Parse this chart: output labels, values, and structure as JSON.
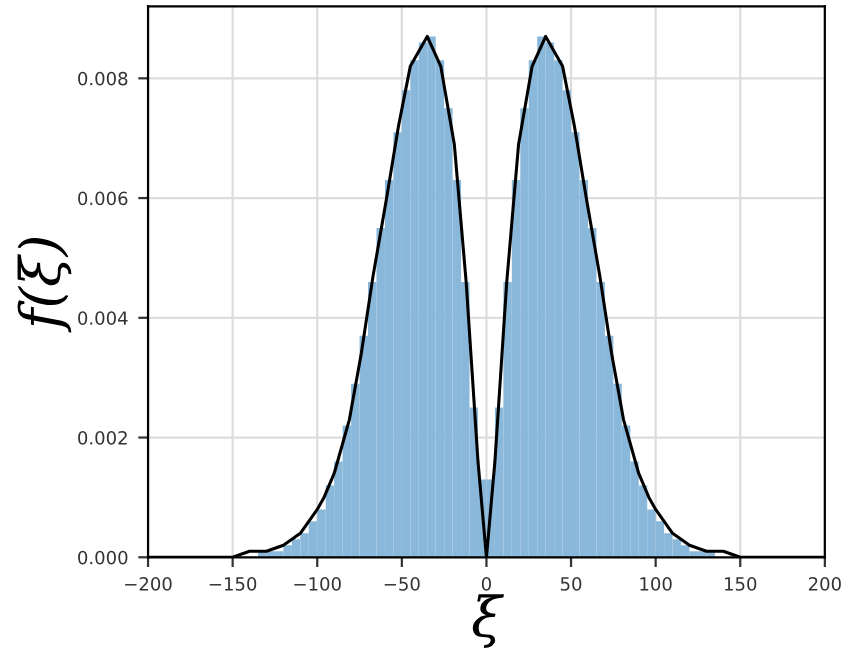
{
  "chart_data": {
    "type": "histogram",
    "xlabel": "ξ",
    "ylabel": "f(ξ)",
    "xlim": [
      -200,
      200
    ],
    "ylim": [
      0,
      0.0092
    ],
    "xticks": [
      {
        "value": -200,
        "label": "−200"
      },
      {
        "value": -150,
        "label": "−150"
      },
      {
        "value": -100,
        "label": "−100"
      },
      {
        "value": -50,
        "label": "−50"
      },
      0,
      50,
      100,
      150,
      200
    ],
    "yticks": [
      {
        "value": 0,
        "label": "0.000"
      },
      {
        "value": 0.002,
        "label": "0.002"
      },
      {
        "value": 0.004,
        "label": "0.004"
      },
      {
        "value": 0.006,
        "label": "0.006"
      },
      {
        "value": 0.008,
        "label": "0.008"
      }
    ],
    "grid": true,
    "series": [
      {
        "color": "#8ab8da",
        "bins": [
          -140,
          -135,
          -130,
          -125,
          -120,
          -115,
          -110,
          -105,
          -100,
          -95,
          -90,
          -85,
          -80,
          -75,
          -70,
          -65,
          -60,
          -55,
          -50,
          -45,
          -40,
          -35,
          -30,
          -25,
          -20,
          -15,
          -10,
          -5,
          0,
          5,
          10,
          15,
          20,
          25,
          30,
          35,
          40,
          45,
          50,
          55,
          60,
          65,
          70,
          75,
          80,
          85,
          90,
          95,
          100,
          105,
          110,
          115,
          120,
          125,
          130,
          135,
          140
        ],
        "values": [
          0,
          0.0001,
          0.0001,
          0.0001,
          0.0002,
          0.0003,
          0.0004,
          0.0006,
          0.0008,
          0.0012,
          0.0016,
          0.0022,
          0.0029,
          0.0037,
          0.0046,
          0.0055,
          0.0063,
          0.0071,
          0.0078,
          0.0083,
          0.0086,
          0.0087,
          0.0083,
          0.0075,
          0.0063,
          0.0046,
          0.0025,
          0.0013,
          0.0013,
          0.0025,
          0.0046,
          0.0063,
          0.0075,
          0.0083,
          0.0087,
          0.0086,
          0.0083,
          0.0078,
          0.0071,
          0.0063,
          0.0055,
          0.0046,
          0.0037,
          0.0029,
          0.0022,
          0.0016,
          0.0012,
          0.0008,
          0.0006,
          0.0004,
          0.0003,
          0.0002,
          0.0001,
          0.0001,
          0.0001,
          0
        ]
      },
      {
        "type": "line",
        "color": "#000000",
        "x": [
          -200,
          -150,
          -140,
          -130,
          -120,
          -110,
          -100,
          -96,
          -90,
          -81,
          -74,
          -67,
          -59,
          -52,
          -45,
          -35,
          -27,
          -19,
          -12,
          -5,
          0,
          5,
          12,
          19,
          27,
          35,
          45,
          52,
          59,
          67,
          74,
          81,
          90,
          96,
          100,
          110,
          120,
          130,
          140,
          150,
          200
        ],
        "values": [
          0,
          0,
          0.0001,
          0.0001,
          0.0002,
          0.0004,
          0.0008,
          0.001,
          0.0014,
          0.0023,
          0.0034,
          0.0047,
          0.006,
          0.0072,
          0.0082,
          0.0087,
          0.0082,
          0.0069,
          0.0046,
          0.0016,
          0,
          0.0016,
          0.0046,
          0.0069,
          0.0082,
          0.0087,
          0.0082,
          0.0072,
          0.006,
          0.0047,
          0.0034,
          0.0023,
          0.0014,
          0.001,
          0.0008,
          0.0004,
          0.0002,
          0.0001,
          0.0001,
          0,
          0
        ]
      }
    ]
  }
}
